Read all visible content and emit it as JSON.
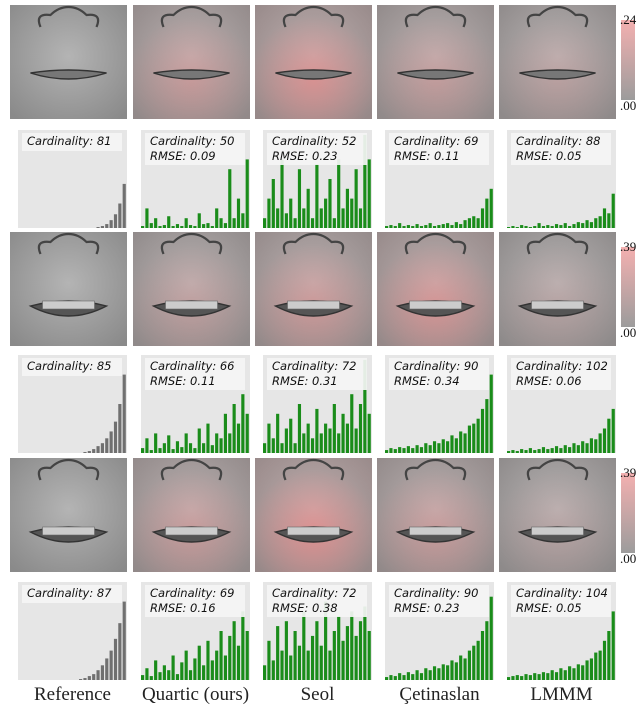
{
  "columns": [
    "Reference",
    "Quartic (ours)",
    "Seol",
    "Çetinaslan",
    "LMMM"
  ],
  "colorbars": [
    {
      "max": ".24",
      "min": ".00"
    },
    {
      "max": ".39",
      "min": ".00"
    },
    {
      "max": ".39",
      "min": ".00"
    }
  ],
  "rows": [
    {
      "histograms": [
        {
          "cardinality": "Cardinality: 81",
          "bars": [
            0,
            0,
            0,
            0,
            0,
            0,
            0,
            0,
            0,
            0,
            0,
            0,
            0,
            0,
            0,
            0,
            0,
            0,
            0.01,
            0.02,
            0.04,
            0.08,
            0.14,
            0.25,
            0.45
          ]
        },
        {
          "cardinality": "Cardinality: 50",
          "rmse": "RMSE:  0.09",
          "bars": [
            0.02,
            0.2,
            0.05,
            0.1,
            0.02,
            0.03,
            0.12,
            0.02,
            0.04,
            0.02,
            0.1,
            0.03,
            0.02,
            0.15,
            0.04,
            0.05,
            0.02,
            0.2,
            0.1,
            0.05,
            0.6,
            0.1,
            0.3,
            0.15,
            0.7
          ]
        },
        {
          "cardinality": "Cardinality: 52",
          "rmse": "RMSE:  0.23",
          "bars": [
            0.1,
            0.3,
            0.5,
            0.2,
            0.7,
            0.15,
            0.3,
            0.1,
            0.6,
            0.2,
            0.4,
            0.1,
            0.65,
            0.2,
            0.3,
            0.5,
            0.1,
            0.7,
            0.2,
            0.4,
            0.3,
            0.6,
            0.2,
            0.95,
            0.7
          ]
        },
        {
          "cardinality": "Cardinality: 69",
          "rmse": "RMSE:  0.11",
          "bars": [
            0.02,
            0.03,
            0.02,
            0.05,
            0.02,
            0.03,
            0.02,
            0.04,
            0.02,
            0.03,
            0.05,
            0.02,
            0.03,
            0.04,
            0.05,
            0.03,
            0.06,
            0.04,
            0.08,
            0.1,
            0.12,
            0.1,
            0.2,
            0.3,
            0.4
          ]
        },
        {
          "cardinality": "Cardinality: 88",
          "rmse": "RMSE:  0.05",
          "bars": [
            0.01,
            0.02,
            0.01,
            0.03,
            0.02,
            0.01,
            0.02,
            0.05,
            0.02,
            0.03,
            0.02,
            0.04,
            0.03,
            0.05,
            0.02,
            0.04,
            0.06,
            0.05,
            0.08,
            0.06,
            0.1,
            0.12,
            0.2,
            0.15,
            0.35
          ]
        }
      ]
    },
    {
      "histograms": [
        {
          "cardinality": "Cardinality: 85",
          "bars": [
            0,
            0,
            0,
            0,
            0,
            0,
            0,
            0,
            0,
            0,
            0,
            0,
            0,
            0,
            0,
            0.01,
            0.02,
            0.04,
            0.07,
            0.1,
            0.15,
            0.22,
            0.32,
            0.5,
            0.8
          ]
        },
        {
          "cardinality": "Cardinality: 66",
          "rmse": "RMSE:  0.11",
          "bars": [
            0.05,
            0.15,
            0.03,
            0.2,
            0.05,
            0.1,
            0.18,
            0.04,
            0.12,
            0.06,
            0.2,
            0.1,
            0.05,
            0.25,
            0.1,
            0.3,
            0.08,
            0.2,
            0.15,
            0.4,
            0.2,
            0.5,
            0.3,
            0.6,
            0.4
          ]
        },
        {
          "cardinality": "Cardinality: 72",
          "rmse": "RMSE:  0.31",
          "bars": [
            0.1,
            0.3,
            0.15,
            0.4,
            0.1,
            0.25,
            0.35,
            0.1,
            0.5,
            0.2,
            0.3,
            0.15,
            0.45,
            0.2,
            0.3,
            0.25,
            0.5,
            0.2,
            0.4,
            0.3,
            0.6,
            0.25,
            0.5,
            0.95,
            0.4
          ]
        },
        {
          "cardinality": "Cardinality: 90",
          "rmse": "RMSE:  0.34",
          "bars": [
            0.03,
            0.05,
            0.04,
            0.06,
            0.05,
            0.07,
            0.05,
            0.08,
            0.06,
            0.1,
            0.08,
            0.12,
            0.1,
            0.14,
            0.12,
            0.18,
            0.15,
            0.22,
            0.2,
            0.28,
            0.3,
            0.35,
            0.45,
            0.55,
            0.8
          ]
        },
        {
          "cardinality": "Cardinality: 102",
          "rmse": "RMSE:  0.06",
          "bars": [
            0.02,
            0.03,
            0.02,
            0.04,
            0.03,
            0.05,
            0.03,
            0.04,
            0.06,
            0.04,
            0.05,
            0.07,
            0.05,
            0.08,
            0.06,
            0.1,
            0.08,
            0.12,
            0.1,
            0.15,
            0.14,
            0.2,
            0.25,
            0.35,
            0.45
          ]
        }
      ]
    },
    {
      "histograms": [
        {
          "cardinality": "Cardinality: 87",
          "bars": [
            0,
            0,
            0,
            0,
            0,
            0,
            0,
            0,
            0,
            0,
            0,
            0,
            0,
            0,
            0.01,
            0.02,
            0.04,
            0.06,
            0.1,
            0.15,
            0.22,
            0.3,
            0.42,
            0.58,
            0.8
          ]
        },
        {
          "cardinality": "Cardinality: 69",
          "rmse": "RMSE:  0.16",
          "bars": [
            0.05,
            0.12,
            0.04,
            0.2,
            0.08,
            0.15,
            0.1,
            0.25,
            0.06,
            0.18,
            0.3,
            0.1,
            0.22,
            0.35,
            0.15,
            0.4,
            0.2,
            0.3,
            0.5,
            0.25,
            0.45,
            0.6,
            0.35,
            0.7,
            0.5
          ]
        },
        {
          "cardinality": "Cardinality: 72",
          "rmse": "RMSE:  0.38",
          "bars": [
            0.15,
            0.4,
            0.2,
            0.55,
            0.3,
            0.6,
            0.25,
            0.5,
            0.35,
            0.7,
            0.3,
            0.45,
            0.6,
            0.35,
            0.8,
            0.3,
            0.5,
            0.65,
            0.4,
            0.55,
            0.7,
            0.45,
            0.6,
            0.75,
            0.5
          ]
        },
        {
          "cardinality": "Cardinality: 90",
          "rmse": "RMSE:  0.23",
          "bars": [
            0.03,
            0.05,
            0.04,
            0.07,
            0.05,
            0.08,
            0.06,
            0.1,
            0.07,
            0.12,
            0.1,
            0.14,
            0.12,
            0.16,
            0.15,
            0.2,
            0.18,
            0.25,
            0.22,
            0.3,
            0.35,
            0.4,
            0.5,
            0.6,
            0.85
          ]
        },
        {
          "cardinality": "Cardinality: 104",
          "rmse": "RMSE:  0.05",
          "bars": [
            0.03,
            0.04,
            0.05,
            0.04,
            0.06,
            0.05,
            0.07,
            0.06,
            0.08,
            0.07,
            0.1,
            0.08,
            0.12,
            0.1,
            0.14,
            0.12,
            0.16,
            0.15,
            0.2,
            0.22,
            0.28,
            0.3,
            0.4,
            0.5,
            0.7
          ]
        }
      ]
    }
  ]
}
